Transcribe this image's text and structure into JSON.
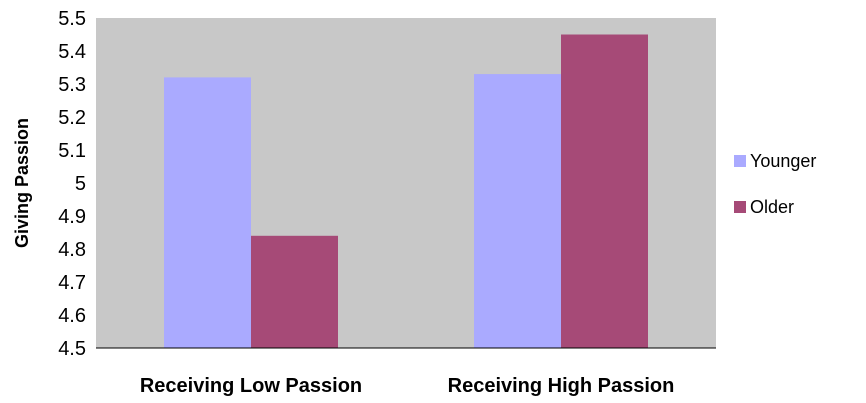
{
  "chart_data": {
    "type": "bar",
    "title": "",
    "xlabel": "",
    "ylabel": "Giving Passion",
    "categories": [
      "Receiving Low Passion",
      "Receiving High Passion"
    ],
    "series": [
      {
        "name": "Younger",
        "values": [
          5.32,
          5.33
        ],
        "color": "#aaaaff"
      },
      {
        "name": "Older",
        "values": [
          4.84,
          5.45
        ],
        "color": "#a64a77"
      }
    ],
    "ylim": [
      4.5,
      5.5
    ],
    "yticks": [
      "4.5",
      "4.6",
      "4.7",
      "4.8",
      "4.9",
      "5",
      "5.1",
      "5.2",
      "5.3",
      "5.4",
      "5.5"
    ],
    "plot_background": "#c8c8c8",
    "grid": false,
    "legend_position": "right"
  }
}
